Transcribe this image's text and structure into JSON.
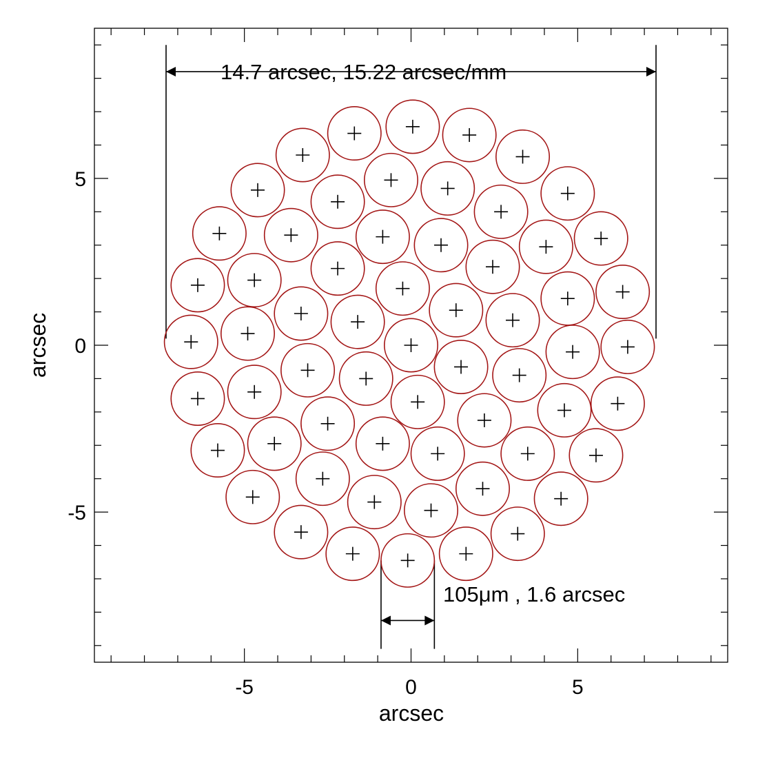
{
  "chart_data": {
    "type": "scatter",
    "title": "",
    "xlabel": "arcsec",
    "ylabel": "arcsec",
    "xlim": [
      -9.5,
      9.5
    ],
    "ylim": [
      -9.5,
      9.5
    ],
    "xticks": [
      -5,
      0,
      5
    ],
    "yticks": [
      -5,
      0,
      5
    ],
    "xtick_labels": [
      "-5",
      "0",
      "5"
    ],
    "ytick_labels": [
      "-5",
      "0",
      "5"
    ],
    "minor_tick_step": 1,
    "grid": false,
    "fiber_diameter": 1.6,
    "fiber_color": "#a31515",
    "marker": "plus",
    "fibers": [
      [
        -1.7,
        6.35
      ],
      [
        0.05,
        6.55
      ],
      [
        1.75,
        6.3
      ],
      [
        -3.25,
        5.7
      ],
      [
        -0.6,
        4.95
      ],
      [
        1.1,
        4.7
      ],
      [
        3.35,
        5.65
      ],
      [
        -4.6,
        4.65
      ],
      [
        -2.2,
        4.3
      ],
      [
        2.7,
        4.0
      ],
      [
        4.7,
        4.55
      ],
      [
        -5.75,
        3.35
      ],
      [
        -3.6,
        3.3
      ],
      [
        -0.85,
        3.25
      ],
      [
        0.9,
        3.0
      ],
      [
        4.05,
        2.95
      ],
      [
        5.7,
        3.2
      ],
      [
        -2.2,
        2.3
      ],
      [
        2.45,
        2.35
      ],
      [
        -6.4,
        1.8
      ],
      [
        -4.7,
        1.95
      ],
      [
        -0.25,
        1.7
      ],
      [
        4.7,
        1.4
      ],
      [
        6.35,
        1.6
      ],
      [
        -3.3,
        0.95
      ],
      [
        -1.6,
        0.7
      ],
      [
        1.35,
        1.05
      ],
      [
        3.05,
        0.75
      ],
      [
        -6.6,
        0.1
      ],
      [
        -4.9,
        0.35
      ],
      [
        0.0,
        0.0
      ],
      [
        4.85,
        -0.2
      ],
      [
        6.5,
        -0.05
      ],
      [
        -3.1,
        -0.75
      ],
      [
        -1.35,
        -1.0
      ],
      [
        1.5,
        -0.65
      ],
      [
        3.25,
        -0.9
      ],
      [
        -6.4,
        -1.6
      ],
      [
        -4.7,
        -1.4
      ],
      [
        0.2,
        -1.7
      ],
      [
        4.6,
        -1.95
      ],
      [
        6.2,
        -1.75
      ],
      [
        -2.5,
        -2.35
      ],
      [
        2.2,
        -2.25
      ],
      [
        -5.8,
        -3.15
      ],
      [
        -4.1,
        -2.95
      ],
      [
        -0.85,
        -2.95
      ],
      [
        0.8,
        -3.25
      ],
      [
        3.5,
        -3.25
      ],
      [
        5.55,
        -3.3
      ],
      [
        -2.65,
        -4.0
      ],
      [
        -1.1,
        -4.7
      ],
      [
        2.15,
        -4.3
      ],
      [
        4.5,
        -4.6
      ],
      [
        -4.75,
        -4.55
      ],
      [
        -3.3,
        -5.6
      ],
      [
        0.6,
        -4.95
      ],
      [
        3.2,
        -5.65
      ],
      [
        -1.75,
        -6.25
      ],
      [
        -0.1,
        -6.45
      ],
      [
        1.65,
        -6.25
      ]
    ],
    "annotations": [
      {
        "text": "14.7 arcsec, 15.22 arcsec/mm",
        "x_from": -7.35,
        "x_to": 7.35,
        "y": 8.2
      },
      {
        "text": "105μm , 1.6 arcsec",
        "x_from": -0.9,
        "x_to": 0.7,
        "y": -8.25
      }
    ]
  }
}
